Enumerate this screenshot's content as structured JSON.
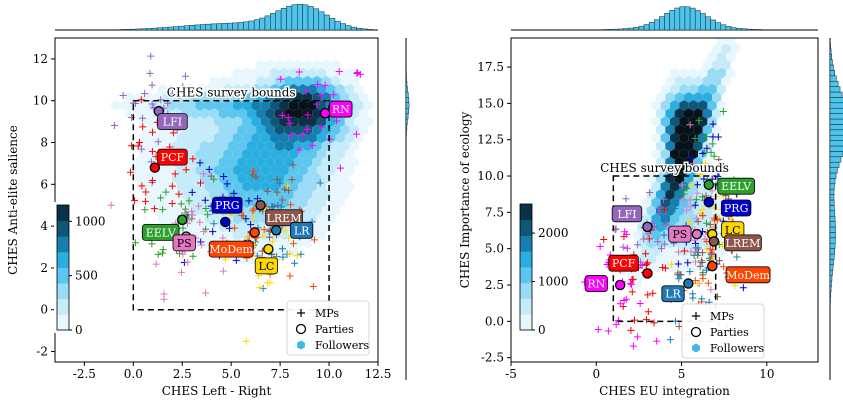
{
  "chart_data": [
    {
      "type": "scatter",
      "xlabel": "CHES Left - Right",
      "ylabel": "CHES Anti-elite salience",
      "xlim": [
        -4,
        12.5
      ],
      "ylim": [
        -2.5,
        13
      ],
      "xticks": [
        -2.5,
        0.0,
        2.5,
        5.0,
        7.5,
        10.0,
        12.5
      ],
      "yticks": [
        -2,
        0,
        2,
        4,
        6,
        8,
        10,
        12
      ],
      "bounds_label": "CHES survey bounds",
      "bounds": {
        "x": [
          0,
          10
        ],
        "y": [
          0,
          10
        ]
      },
      "colorbar": {
        "ticks": [
          0,
          500,
          1000
        ],
        "max": 1150
      },
      "legend": [
        "MPs",
        "Parties",
        "Followers"
      ],
      "legend_position": "lower-right",
      "parties": [
        {
          "name": "LFI",
          "x": 1.3,
          "y": 9.5,
          "color": "#9467bd",
          "label": "LFI",
          "lx": 2.0,
          "ly": 9.0
        },
        {
          "name": "RN",
          "x": 9.8,
          "y": 9.4,
          "color": "#ff00ff",
          "label": "RN",
          "lx": 10.6,
          "ly": 9.6
        },
        {
          "name": "PCF",
          "x": 1.1,
          "y": 6.8,
          "color": "#ff0000",
          "label": "PCF",
          "lx": 2.0,
          "ly": 7.3
        },
        {
          "name": "PRG",
          "x": 4.7,
          "y": 4.2,
          "color": "#0000cc",
          "label": "PRG",
          "lx": 4.8,
          "ly": 5.0
        },
        {
          "name": "LREM",
          "x": 6.5,
          "y": 5.0,
          "color": "#8c564b",
          "label": "LREM",
          "lx": 7.7,
          "ly": 4.4
        },
        {
          "name": "EELV",
          "x": 2.5,
          "y": 4.3,
          "color": "#2ca02c",
          "label": "EELV",
          "lx": 1.4,
          "ly": 3.7
        },
        {
          "name": "PS",
          "x": 2.7,
          "y": 3.5,
          "color": "#e377c2",
          "label": "PS",
          "lx": 2.6,
          "ly": 3.2
        },
        {
          "name": "MoDem",
          "x": 6.2,
          "y": 3.7,
          "color": "#ff4500",
          "label": "MoDem",
          "lx": 5.0,
          "ly": 2.9
        },
        {
          "name": "LR",
          "x": 7.3,
          "y": 3.8,
          "color": "#1f77b4",
          "label": "LR",
          "lx": 8.6,
          "ly": 3.8
        },
        {
          "name": "LC",
          "x": 6.9,
          "y": 2.9,
          "color": "#ffd700",
          "label": "LC",
          "lx": 6.8,
          "ly": 2.1
        }
      ]
    },
    {
      "type": "scatter",
      "xlabel": "CHES EU integration",
      "ylabel": "CHES Importance of ecology",
      "xlim": [
        -5,
        13
      ],
      "ylim": [
        -2.8,
        19.5
      ],
      "xticks": [
        -5,
        0,
        5,
        10
      ],
      "yticks": [
        -2.5,
        0.0,
        2.5,
        5.0,
        7.5,
        10.0,
        12.5,
        15.0,
        17.5
      ],
      "bounds_label": "CHES survey bounds",
      "bounds": {
        "x": [
          1,
          7
        ],
        "y": [
          0,
          10
        ]
      },
      "colorbar": {
        "ticks": [
          0,
          1000,
          2000
        ],
        "max": 2600
      },
      "legend": [
        "MPs",
        "Parties",
        "Followers"
      ],
      "legend_position": "lower-right",
      "parties": [
        {
          "name": "EELV",
          "x": 6.6,
          "y": 9.4,
          "color": "#2ca02c",
          "label": "EELV",
          "lx": 8.2,
          "ly": 9.3
        },
        {
          "name": "PRG",
          "x": 6.6,
          "y": 8.2,
          "color": "#0000cc",
          "label": "PRG",
          "lx": 8.2,
          "ly": 7.8
        },
        {
          "name": "LFI",
          "x": 3.0,
          "y": 6.5,
          "color": "#9467bd",
          "label": "LFI",
          "lx": 1.8,
          "ly": 7.4
        },
        {
          "name": "PS",
          "x": 5.9,
          "y": 6.0,
          "color": "#e377c2",
          "label": "PS",
          "lx": 4.9,
          "ly": 6.0
        },
        {
          "name": "LC",
          "x": 6.8,
          "y": 6.0,
          "color": "#ffd700",
          "label": "LC",
          "lx": 8.0,
          "ly": 6.3
        },
        {
          "name": "LREM",
          "x": 6.9,
          "y": 5.5,
          "color": "#8c564b",
          "label": "LREM",
          "lx": 8.6,
          "ly": 5.4
        },
        {
          "name": "PCF",
          "x": 3.0,
          "y": 3.3,
          "color": "#ff0000",
          "label": "PCF",
          "lx": 1.6,
          "ly": 4.0
        },
        {
          "name": "MoDem",
          "x": 6.8,
          "y": 3.8,
          "color": "#ff4500",
          "label": "MoDem",
          "lx": 8.9,
          "ly": 3.2
        },
        {
          "name": "RN",
          "x": 1.4,
          "y": 2.5,
          "color": "#ff00ff",
          "label": "RN",
          "lx": 0.0,
          "ly": 2.6
        },
        {
          "name": "LR",
          "x": 5.4,
          "y": 2.6,
          "color": "#1f77b4",
          "label": "LR",
          "lx": 4.5,
          "ly": 1.9
        }
      ]
    }
  ]
}
